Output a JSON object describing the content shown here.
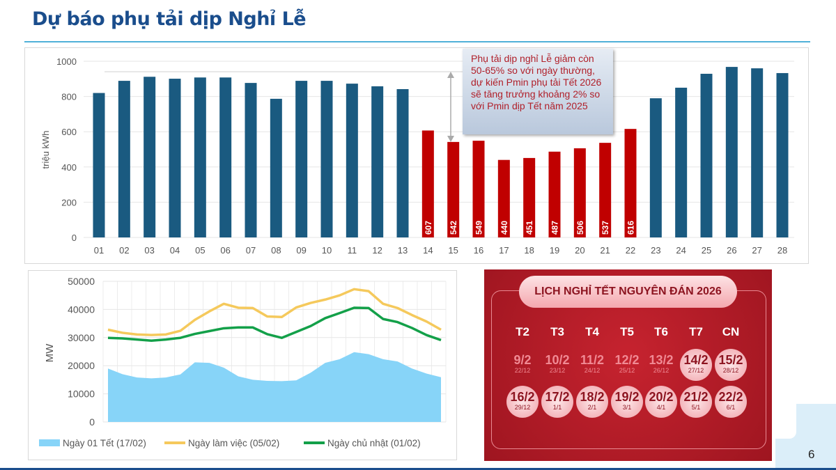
{
  "title": "Dự báo phụ tải dịp Nghỉ Lễ",
  "page_number": "6",
  "annotation": "Phụ tải dịp nghỉ Lễ giảm còn 50-65% so với ngày thường, dự kiến Pmin phụ tải Tết 2026 sẽ tăng trưởng khoảng 2% so với Pmin dịp Tết năm 2025",
  "chart_data": [
    {
      "type": "bar",
      "ylabel": "triệu kWh",
      "ylim": [
        0,
        1000
      ],
      "yticks": [
        "0",
        "200",
        "400",
        "600",
        "800",
        "1000"
      ],
      "grid": true,
      "categories": [
        "01",
        "02",
        "03",
        "04",
        "05",
        "06",
        "07",
        "08",
        "09",
        "10",
        "11",
        "12",
        "13",
        "14",
        "15",
        "16",
        "17",
        "18",
        "19",
        "20",
        "21",
        "22",
        "23",
        "24",
        "25",
        "26",
        "27",
        "28"
      ],
      "values": [
        820,
        889,
        912,
        901,
        908,
        908,
        877,
        787,
        889,
        889,
        873,
        858,
        842,
        607,
        542,
        549,
        440,
        451,
        487,
        506,
        537,
        616,
        790,
        850,
        929,
        968,
        960,
        933
      ],
      "holiday_range": [
        "14",
        "22"
      ],
      "data_labels": {
        "14": "607",
        "15": "542",
        "16": "549",
        "17": "440",
        "18": "451",
        "19": "487",
        "20": "506",
        "21": "537",
        "22": "616"
      },
      "colors": {
        "normal": "#1a5a80",
        "holiday": "#c00000"
      }
    },
    {
      "type": "line",
      "ylabel": "MW",
      "ylim": [
        0,
        50000
      ],
      "yticks": [
        "0",
        "10000",
        "20000",
        "30000",
        "40000",
        "50000"
      ],
      "grid": true,
      "legend": "bottom",
      "series": [
        {
          "name": "Ngày 01 Tết (17/02)",
          "style": "area",
          "color": "#87d4f8",
          "values": [
            19000,
            17000,
            15800,
            15500,
            15800,
            16900,
            21200,
            21000,
            19300,
            16200,
            15000,
            14600,
            14500,
            14800,
            17500,
            21000,
            22300,
            24800,
            24100,
            22300,
            21500,
            19000,
            17200,
            15900
          ]
        },
        {
          "name": "Ngày làm việc (05/02)",
          "style": "line",
          "color": "#f5c95c",
          "values": [
            32800,
            31700,
            31100,
            30900,
            31100,
            32400,
            36300,
            39300,
            42000,
            40600,
            40500,
            37500,
            37300,
            40700,
            42300,
            43500,
            45000,
            47200,
            46500,
            42000,
            40500,
            38000,
            35700,
            32800
          ]
        },
        {
          "name": "Ngày chủ nhật (01/02)",
          "style": "line",
          "color": "#13a049",
          "values": [
            29900,
            29700,
            29300,
            28900,
            29300,
            29900,
            31300,
            32300,
            33300,
            33600,
            33600,
            31200,
            29900,
            32000,
            34100,
            36900,
            38700,
            40600,
            40500,
            36600,
            35500,
            33400,
            30900,
            29100
          ]
        }
      ]
    }
  ],
  "calendar": {
    "title": "LỊCH NGHỈ TẾT NGUYÊN ĐÁN 2026",
    "weekdays": [
      "T2",
      "T3",
      "T4",
      "T5",
      "T6",
      "T7",
      "CN"
    ],
    "weeks": [
      [
        {
          "d": "9/2",
          "l": "22/12",
          "off": false
        },
        {
          "d": "10/2",
          "l": "23/12",
          "off": false
        },
        {
          "d": "11/2",
          "l": "24/12",
          "off": false
        },
        {
          "d": "12/2",
          "l": "25/12",
          "off": false
        },
        {
          "d": "13/2",
          "l": "26/12",
          "off": false
        },
        {
          "d": "14/2",
          "l": "27/12",
          "off": true
        },
        {
          "d": "15/2",
          "l": "28/12",
          "off": true
        }
      ],
      [
        {
          "d": "16/2",
          "l": "29/12",
          "off": true
        },
        {
          "d": "17/2",
          "l": "1/1",
          "off": true
        },
        {
          "d": "18/2",
          "l": "2/1",
          "off": true
        },
        {
          "d": "19/2",
          "l": "3/1",
          "off": true
        },
        {
          "d": "20/2",
          "l": "4/1",
          "off": true
        },
        {
          "d": "21/2",
          "l": "5/1",
          "off": true
        },
        {
          "d": "22/2",
          "l": "6/1",
          "off": true
        }
      ]
    ]
  }
}
